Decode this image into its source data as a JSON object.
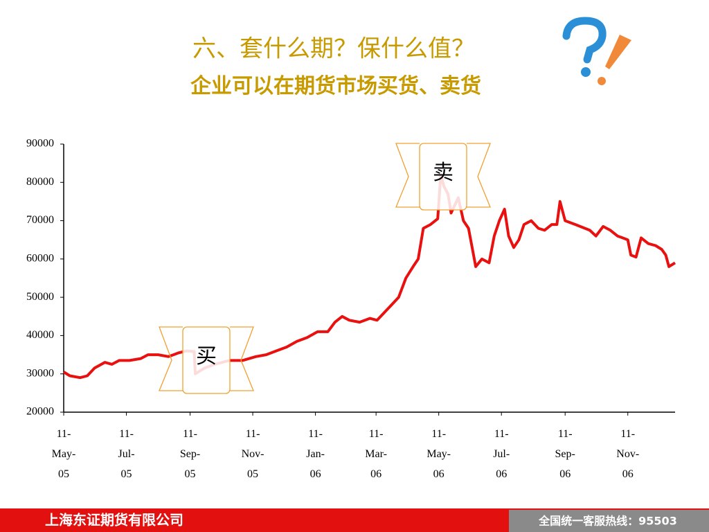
{
  "title": "六、套什么期？保什么值？",
  "subtitle": "企业可以在期货市场买货、卖货",
  "footer": {
    "left": "上海东证期货有限公司",
    "right": "全国统一客服热线：95503"
  },
  "chart_data": {
    "type": "line",
    "x": [
      "2005-05-11",
      "2005-05-17",
      "2005-05-27",
      "2005-06-03",
      "2005-06-10",
      "2005-06-20",
      "2005-06-27",
      "2005-07-04",
      "2005-07-14",
      "2005-07-25",
      "2005-08-01",
      "2005-08-11",
      "2005-08-21",
      "2005-08-31",
      "2005-09-08",
      "2005-09-15",
      "2005-09-16",
      "2005-09-25",
      "2005-10-05",
      "2005-10-19",
      "2005-11-01",
      "2005-11-14",
      "2005-11-24",
      "2005-12-04",
      "2005-12-14",
      "2005-12-24",
      "2006-01-03",
      "2006-01-13",
      "2006-01-23",
      "2006-01-30",
      "2006-02-06",
      "2006-02-13",
      "2006-02-23",
      "2006-03-05",
      "2006-03-12",
      "2006-03-19",
      "2006-03-26",
      "2006-04-02",
      "2006-04-09",
      "2006-04-16",
      "2006-04-21",
      "2006-04-26",
      "2006-05-03",
      "2006-05-10",
      "2006-05-13",
      "2006-05-16",
      "2006-05-20",
      "2006-05-23",
      "2006-05-30",
      "2006-06-04",
      "2006-06-09",
      "2006-06-16",
      "2006-06-22",
      "2006-06-29",
      "2006-07-04",
      "2006-07-09",
      "2006-07-14",
      "2006-07-18",
      "2006-07-23",
      "2006-07-28",
      "2006-08-02",
      "2006-08-09",
      "2006-08-16",
      "2006-08-22",
      "2006-08-29",
      "2006-09-03",
      "2006-09-06",
      "2006-09-11",
      "2006-09-21",
      "2006-10-05",
      "2006-10-11",
      "2006-10-18",
      "2006-10-25",
      "2006-11-01",
      "2006-11-06",
      "2006-11-11",
      "2006-11-14",
      "2006-11-19",
      "2006-11-24",
      "2006-12-01",
      "2006-12-08",
      "2006-12-14",
      "2006-12-18",
      "2006-12-21",
      "2006-12-27"
    ],
    "series": [
      {
        "color": "#e8110f",
        "values": [
          30500,
          29500,
          29000,
          29500,
          31500,
          33000,
          32500,
          33500,
          33500,
          34000,
          35000,
          35000,
          34500,
          35500,
          36000,
          35800,
          30000,
          31500,
          32500,
          33500,
          33500,
          34500,
          35000,
          36000,
          37000,
          38500,
          39500,
          41000,
          41000,
          43500,
          45000,
          44000,
          43500,
          44500,
          44000,
          46000,
          48000,
          50000,
          55000,
          58000,
          60000,
          68000,
          69000,
          70500,
          82000,
          79000,
          77000,
          72000,
          76000,
          70000,
          68000,
          58000,
          60000,
          59000,
          66000,
          70000,
          73000,
          66000,
          63000,
          65000,
          69000,
          70000,
          68000,
          67500,
          69000,
          69000,
          75000,
          70000,
          69000,
          67500,
          66000,
          68500,
          67500,
          66000,
          65500,
          65000,
          61000,
          60500,
          65500,
          64000,
          63500,
          62500,
          61000,
          58000,
          59000
        ]
      }
    ],
    "xlim": [
      "2005-05-11",
      "2006-12-27"
    ],
    "xticks": [
      {
        "value": "2005-05-11",
        "label": "11-May-05"
      },
      {
        "value": "2005-07-11",
        "label": "11-Jul-05"
      },
      {
        "value": "2005-09-11",
        "label": "11-Sep-05"
      },
      {
        "value": "2005-11-11",
        "label": "11-Nov-05"
      },
      {
        "value": "2006-01-11",
        "label": "11-Jan-06"
      },
      {
        "value": "2006-03-11",
        "label": "11-Mar-06"
      },
      {
        "value": "2006-05-11",
        "label": "11-May-06"
      },
      {
        "value": "2006-07-11",
        "label": "11-Jul-06"
      },
      {
        "value": "2006-09-11",
        "label": "11-Sep-06"
      },
      {
        "value": "2006-11-11",
        "label": "11-Nov-06"
      }
    ],
    "ylim": [
      20000,
      90000
    ],
    "yticks": [
      20000,
      30000,
      40000,
      50000,
      60000,
      70000,
      80000,
      90000
    ],
    "annotations": [
      {
        "text": "买"
      },
      {
        "text": "卖"
      }
    ]
  }
}
